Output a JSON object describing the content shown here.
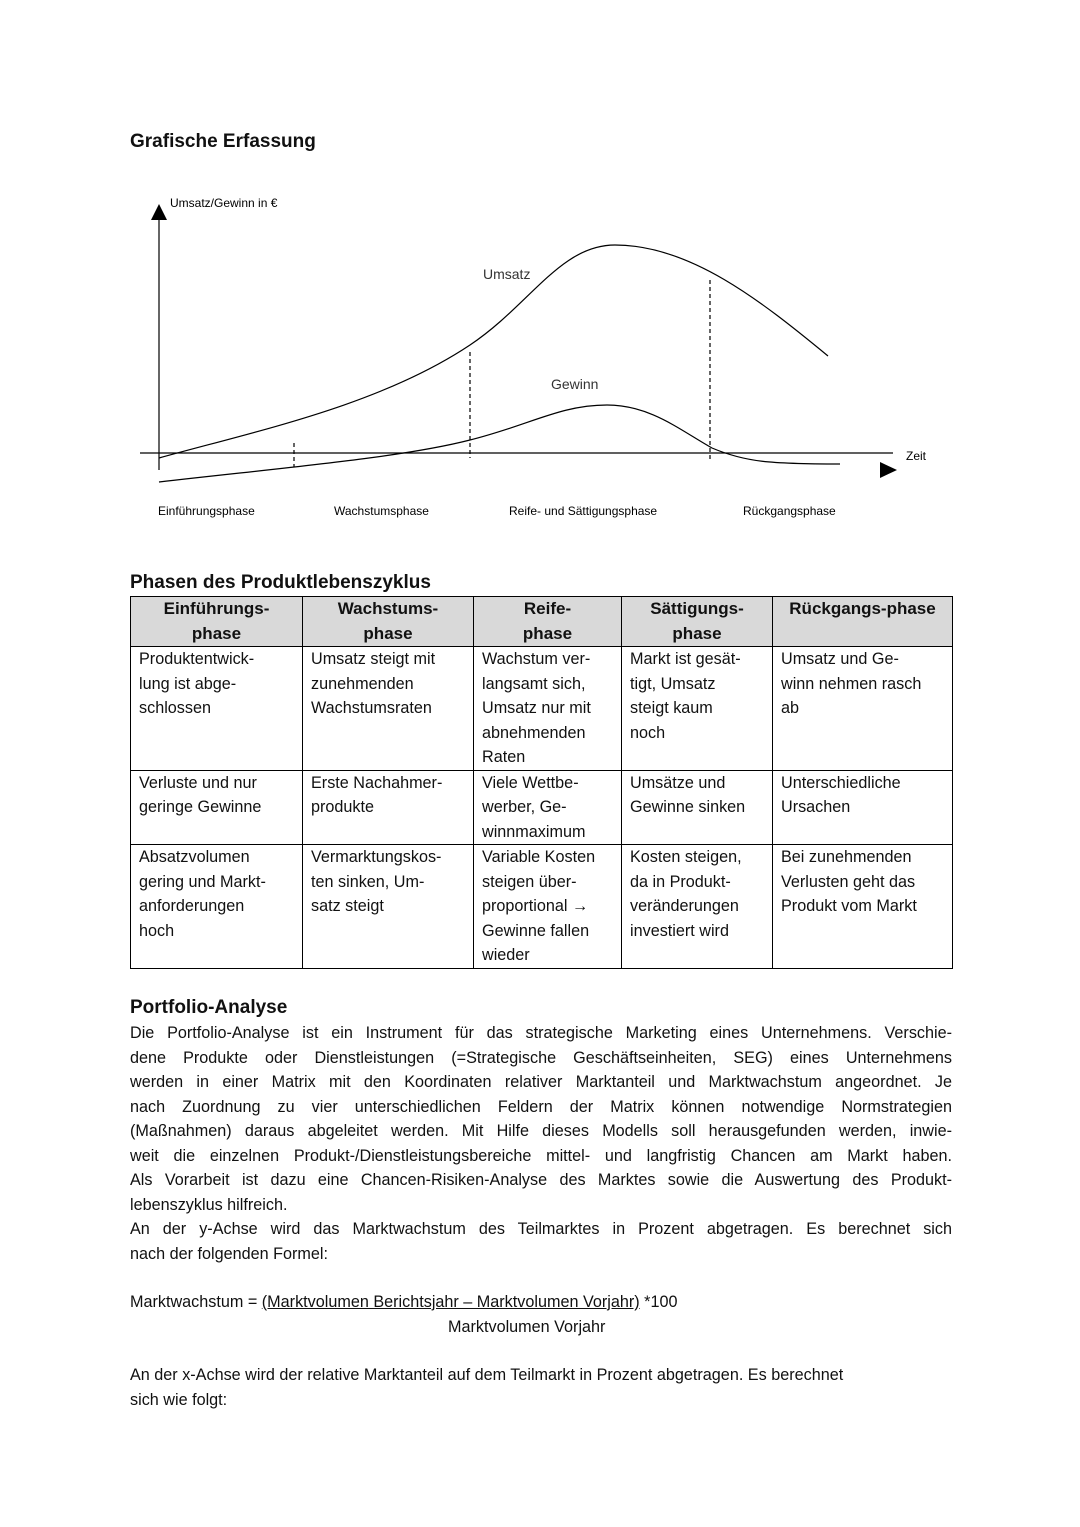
{
  "graph_section": {
    "heading": "Grafische Erfassung",
    "y_axis_label": "Umsatz/Gewinn in €",
    "x_axis_label": "Zeit",
    "curves": [
      "Umsatz",
      "Gewinn"
    ],
    "phases": [
      "Einführungsphase",
      "Wachstumsphase",
      "Reife- und Sättigungsphase",
      "Rückgangsphase"
    ]
  },
  "table": {
    "title": "Phasen des Produktlebenszyklus",
    "header": [
      "Einführungs-\nphase",
      "Wachstums-\nphase",
      "Reife-\nphase",
      "Sättigungs-\nphase",
      "Rückgangs-phase"
    ],
    "rows": [
      [
        "Produktentwick-\nlung ist abge-\nschlossen",
        "Umsatz steigt mit\nzunehmenden\nWachstumsraten",
        "Wachstum ver-\nlangsamt sich,\nUmsatz nur mit\nabnehmenden\nRaten",
        "Markt ist gesät-\ntigt, Umsatz\nsteigt kaum\nnoch",
        "Umsatz und Ge-\nwinn nehmen rasch\nab"
      ],
      [
        "Verluste und nur\ngeringe Gewinne",
        "Erste Nachahmer-\nprodukte",
        "Viele Wettbe-\nwerber, Ge-\nwinnmaximum",
        "Umsätze und\nGewinne sinken",
        "Unterschiedliche\nUrsachen"
      ],
      [
        "Absatzvolumen\ngering und Markt-\nanforderungen\nhoch",
        "Vermarktungskos-\nten sinken, Um-\nsatz steigt",
        "Variable Kosten\nsteigen über-\nproportional →\nGewinne fallen\nwieder",
        "Kosten steigen,\nda in Produkt-\nveränderungen\ninvestiert wird",
        "Bei zunehmenden\nVerlusten geht das\nProdukt vom Markt"
      ]
    ]
  },
  "portfolio": {
    "heading": "Portfolio-Analyse",
    "paragraphs": [
      {
        "lines": [
          "Die Portfolio-Analyse ist ein Instrument für das strategische Marketing eines Unternehmens. Verschie-",
          "dene Produkte oder Dienstleistungen (=Strategische Geschäftseinheiten, SEG) eines Unternehmens",
          "werden in einer Matrix mit den Koordinaten relativer Marktanteil und Marktwachstum angeordnet. Je",
          "nach Zuordnung zu vier unterschiedlichen Feldern der Matrix können notwendige Normstrategien",
          "(Maßnahmen) daraus abgeleitet werden. Mit Hilfe dieses Modells soll herausgefunden werden, inwie-",
          "weit die einzelnen Produkt-/Dienstleistungsbereiche mittel- und langfristig Chancen am Markt haben.",
          "Als Vorarbeit ist dazu eine Chancen-Risiken-Analyse des Marktes sowie die Auswertung des Produkt-",
          "lebenszyklus hilfreich."
        ]
      },
      {
        "lines": [
          "An der y-Achse wird das Marktwachstum des Teilmarktes in Prozent abgetragen. Es berechnet sich",
          "nach der folgenden Formel:"
        ]
      }
    ],
    "formula": {
      "left": "Marktwachstum =",
      "numerator": "(Marktvolumen Berichtsjahr – Marktvolumen Vorjahr)",
      "factor": "*100",
      "denominator": "Marktvolumen Vorjahr"
    },
    "closing": {
      "lines": [
        "An der x-Achse wird der relative Marktanteil auf dem Teilmarkt in Prozent abgetragen. Es berechnet",
        "sich wie folgt:"
      ]
    }
  }
}
